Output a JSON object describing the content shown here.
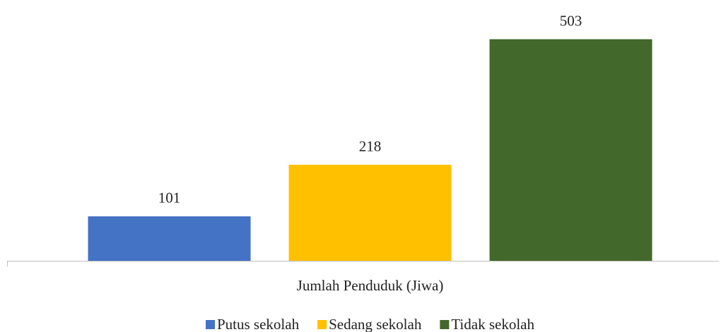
{
  "chart_data": {
    "type": "bar",
    "categories": [
      "Jumlah Penduduk (Jiwa)"
    ],
    "series": [
      {
        "name": "Putus sekolah",
        "color": "#4472c4",
        "values": [
          101
        ]
      },
      {
        "name": "Sedang sekolah",
        "color": "#ffc000",
        "values": [
          218
        ]
      },
      {
        "name": "Tidak sekolah",
        "color": "#43682b",
        "values": [
          503
        ]
      }
    ],
    "ylim": [
      0,
      560
    ],
    "legend": "bottom"
  }
}
